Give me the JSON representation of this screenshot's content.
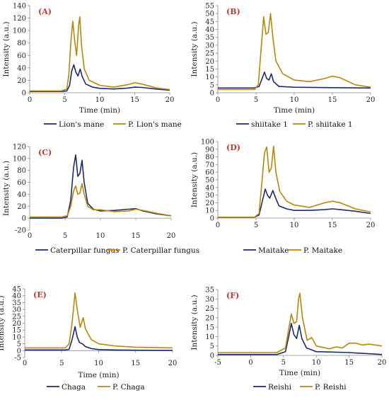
{
  "colors": {
    "series_a": "#1f2a6b",
    "series_b": "#b8860b",
    "axis": "#888888",
    "letter": "#c0392b"
  },
  "chart_data": [
    {
      "type": "line",
      "letter": "(A)",
      "xlabel": "Time (min)",
      "ylabel": "Intensity (a.u.)",
      "xlim": [
        0,
        20
      ],
      "ylim": [
        0,
        140
      ],
      "xticks": [
        0,
        5,
        10,
        15,
        20
      ],
      "yticks": [
        0,
        20,
        40,
        60,
        80,
        100,
        120,
        140
      ],
      "series": [
        {
          "name": "Lion's mane",
          "points": [
            [
              0,
              2
            ],
            [
              4.5,
              2
            ],
            [
              5.3,
              3
            ],
            [
              5.7,
              12
            ],
            [
              6.0,
              35
            ],
            [
              6.3,
              45
            ],
            [
              6.6,
              33
            ],
            [
              6.9,
              27
            ],
            [
              7.2,
              38
            ],
            [
              7.5,
              26
            ],
            [
              8,
              14
            ],
            [
              9,
              9
            ],
            [
              10,
              7
            ],
            [
              12,
              6
            ],
            [
              14,
              7.5
            ],
            [
              15,
              9
            ],
            [
              16,
              8.5
            ],
            [
              18,
              6
            ],
            [
              20,
              4
            ]
          ]
        },
        {
          "name": "P. Lion's mane",
          "points": [
            [
              0,
              3
            ],
            [
              4.5,
              3
            ],
            [
              5.3,
              6
            ],
            [
              5.6,
              30
            ],
            [
              5.9,
              85
            ],
            [
              6.15,
              115
            ],
            [
              6.45,
              80
            ],
            [
              6.7,
              60
            ],
            [
              7.0,
              110
            ],
            [
              7.15,
              122
            ],
            [
              7.4,
              75
            ],
            [
              7.8,
              38
            ],
            [
              8.5,
              20
            ],
            [
              10,
              12
            ],
            [
              12,
              9
            ],
            [
              14,
              13
            ],
            [
              15,
              16
            ],
            [
              16,
              14
            ],
            [
              18,
              8
            ],
            [
              20,
              5
            ]
          ]
        }
      ]
    },
    {
      "type": "line",
      "letter": "(B)",
      "xlabel": "Time (min)",
      "ylabel": "Intensity (a.u.)",
      "xlim": [
        0,
        20
      ],
      "ylim": [
        0,
        55
      ],
      "xticks": [
        0,
        5,
        10,
        15,
        20
      ],
      "yticks": [
        0,
        5,
        10,
        15,
        20,
        25,
        30,
        35,
        40,
        45,
        50,
        55
      ],
      "series": [
        {
          "name": "shiitake 1",
          "points": [
            [
              0,
              3
            ],
            [
              4.8,
              3
            ],
            [
              5.4,
              4
            ],
            [
              5.8,
              9
            ],
            [
              6.1,
              13
            ],
            [
              6.4,
              9
            ],
            [
              6.7,
              8
            ],
            [
              7.0,
              12
            ],
            [
              7.3,
              7
            ],
            [
              8,
              4
            ],
            [
              10,
              3.5
            ],
            [
              15,
              3.2
            ],
            [
              20,
              3
            ]
          ]
        },
        {
          "name": "P. shiitake 1",
          "points": [
            [
              0,
              2
            ],
            [
              4.8,
              2
            ],
            [
              5.3,
              5
            ],
            [
              5.7,
              30
            ],
            [
              6.0,
              48
            ],
            [
              6.3,
              37
            ],
            [
              6.6,
              38
            ],
            [
              6.9,
              50
            ],
            [
              7.2,
              35
            ],
            [
              7.6,
              20
            ],
            [
              8.5,
              12
            ],
            [
              10,
              8
            ],
            [
              12,
              7
            ],
            [
              14,
              9
            ],
            [
              15,
              10.5
            ],
            [
              16,
              9.5
            ],
            [
              18,
              5
            ],
            [
              20,
              3.5
            ]
          ]
        }
      ]
    },
    {
      "type": "line",
      "letter": "(C)",
      "xlabel": "",
      "ylabel": "Intensity (a.u.)",
      "xlim": [
        0,
        20
      ],
      "ylim": [
        -20,
        120
      ],
      "xticks": [
        0,
        5,
        10,
        15,
        20
      ],
      "yticks": [
        -20,
        0,
        20,
        40,
        60,
        80,
        100,
        120
      ],
      "series": [
        {
          "name": "Caterpillar fungus",
          "points": [
            [
              0,
              0
            ],
            [
              4.5,
              0
            ],
            [
              5.3,
              2
            ],
            [
              5.8,
              30
            ],
            [
              6.2,
              85
            ],
            [
              6.5,
              106
            ],
            [
              6.8,
              70
            ],
            [
              7.1,
              75
            ],
            [
              7.4,
              97
            ],
            [
              7.7,
              60
            ],
            [
              8.2,
              25
            ],
            [
              9,
              15
            ],
            [
              10,
              12
            ],
            [
              12,
              13
            ],
            [
              14,
              15
            ],
            [
              15,
              16
            ],
            [
              16,
              12
            ],
            [
              18,
              7
            ],
            [
              20,
              4
            ]
          ]
        },
        {
          "name": "P. Caterpillar fungus",
          "points": [
            [
              0,
              2
            ],
            [
              4.5,
              2
            ],
            [
              5.3,
              4
            ],
            [
              5.8,
              20
            ],
            [
              6.2,
              45
            ],
            [
              6.5,
              54
            ],
            [
              6.8,
              40
            ],
            [
              7.1,
              42
            ],
            [
              7.4,
              58
            ],
            [
              7.7,
              40
            ],
            [
              8.2,
              20
            ],
            [
              9,
              14
            ],
            [
              10,
              14
            ],
            [
              12,
              11
            ],
            [
              14,
              12
            ],
            [
              15,
              15
            ],
            [
              16,
              13
            ],
            [
              18,
              8
            ],
            [
              20,
              4
            ]
          ]
        }
      ]
    },
    {
      "type": "line",
      "letter": "(D)",
      "xlabel": "",
      "ylabel": "Intensity (a.u.)",
      "xlim": [
        0,
        20
      ],
      "ylim": [
        0,
        100
      ],
      "xticks": [
        0,
        5,
        10,
        15,
        20
      ],
      "yticks": [
        0,
        10,
        20,
        30,
        40,
        50,
        60,
        70,
        80,
        90,
        100
      ],
      "series": [
        {
          "name": "Maitake",
          "points": [
            [
              0,
              1
            ],
            [
              4.8,
              1
            ],
            [
              5.4,
              4
            ],
            [
              5.9,
              25
            ],
            [
              6.2,
              38
            ],
            [
              6.5,
              30
            ],
            [
              6.8,
              26
            ],
            [
              7.2,
              36
            ],
            [
              7.5,
              28
            ],
            [
              8,
              16
            ],
            [
              9,
              12
            ],
            [
              10,
              10
            ],
            [
              12,
              10
            ],
            [
              14,
              11
            ],
            [
              15,
              12
            ],
            [
              16,
              11
            ],
            [
              18,
              9
            ],
            [
              20,
              6
            ]
          ]
        },
        {
          "name": "P. Maitake",
          "points": [
            [
              0,
              1
            ],
            [
              4.8,
              1
            ],
            [
              5.4,
              6
            ],
            [
              5.8,
              50
            ],
            [
              6.1,
              85
            ],
            [
              6.4,
              93
            ],
            [
              6.7,
              60
            ],
            [
              7.0,
              65
            ],
            [
              7.3,
              94
            ],
            [
              7.6,
              60
            ],
            [
              8.1,
              35
            ],
            [
              9,
              22
            ],
            [
              10,
              17
            ],
            [
              12,
              14
            ],
            [
              14,
              20
            ],
            [
              15,
              22
            ],
            [
              16,
              20
            ],
            [
              18,
              12
            ],
            [
              20,
              8
            ]
          ]
        }
      ]
    },
    {
      "type": "line",
      "letter": "(E)",
      "xlabel": "Time (min)",
      "ylabel": "Intensity (a.u.)",
      "xlim": [
        0,
        20
      ],
      "ylim": [
        -5,
        45
      ],
      "xticks": [
        0,
        5,
        10,
        15,
        20
      ],
      "yticks": [
        -5,
        0,
        5,
        10,
        15,
        20,
        25,
        30,
        35,
        40,
        45
      ],
      "series": [
        {
          "name": "Chaga",
          "points": [
            [
              0,
              0.5
            ],
            [
              5.5,
              0.5
            ],
            [
              6.0,
              1
            ],
            [
              6.4,
              8
            ],
            [
              6.8,
              17.5
            ],
            [
              7.1,
              10
            ],
            [
              7.4,
              6
            ],
            [
              7.8,
              5
            ],
            [
              8.2,
              3
            ],
            [
              9,
              1.5
            ],
            [
              10,
              0.8
            ],
            [
              12,
              0.5
            ],
            [
              15,
              0.3
            ],
            [
              20,
              0.2
            ]
          ]
        },
        {
          "name": "P. Chaga",
          "points": [
            [
              0,
              2
            ],
            [
              5.5,
              2
            ],
            [
              6.0,
              5
            ],
            [
              6.4,
              20
            ],
            [
              6.8,
              42
            ],
            [
              7.1,
              30
            ],
            [
              7.5,
              17
            ],
            [
              7.9,
              24
            ],
            [
              8.2,
              16
            ],
            [
              9,
              8
            ],
            [
              10,
              5
            ],
            [
              12,
              3.5
            ],
            [
              15,
              2.5
            ],
            [
              20,
              2
            ]
          ]
        }
      ]
    },
    {
      "type": "line",
      "letter": "(F)",
      "xlabel": "Time (min)",
      "ylabel": "Intensity (a.u.)",
      "xlim": [
        -5,
        20
      ],
      "ylim": [
        0,
        35
      ],
      "xticks": [
        -5,
        0,
        5,
        10,
        15,
        20
      ],
      "yticks": [
        0,
        5,
        10,
        15,
        20,
        25,
        30,
        35
      ],
      "series": [
        {
          "name": "Reishi",
          "points": [
            [
              -5,
              0.5
            ],
            [
              4,
              0.5
            ],
            [
              5.3,
              2
            ],
            [
              5.8,
              10
            ],
            [
              6.2,
              17
            ],
            [
              6.6,
              11
            ],
            [
              7.0,
              9
            ],
            [
              7.4,
              16
            ],
            [
              7.8,
              9
            ],
            [
              8.5,
              4
            ],
            [
              10,
              2
            ],
            [
              12,
              1.8
            ],
            [
              15,
              1.5
            ],
            [
              20,
              0.5
            ]
          ]
        },
        {
          "name": "P. Reishi",
          "points": [
            [
              -5,
              1.5
            ],
            [
              4,
              1.5
            ],
            [
              5.3,
              4
            ],
            [
              5.8,
              14
            ],
            [
              6.2,
              22
            ],
            [
              6.6,
              17
            ],
            [
              7.0,
              18
            ],
            [
              7.3,
              30
            ],
            [
              7.5,
              33
            ],
            [
              7.9,
              20
            ],
            [
              8.6,
              8
            ],
            [
              9.3,
              9.5
            ],
            [
              10,
              5
            ],
            [
              12,
              3.5
            ],
            [
              13,
              4.5
            ],
            [
              14,
              4
            ],
            [
              15,
              6.5
            ],
            [
              16,
              6.5
            ],
            [
              17,
              5.5
            ],
            [
              18,
              6
            ],
            [
              20,
              5
            ]
          ]
        }
      ]
    }
  ]
}
